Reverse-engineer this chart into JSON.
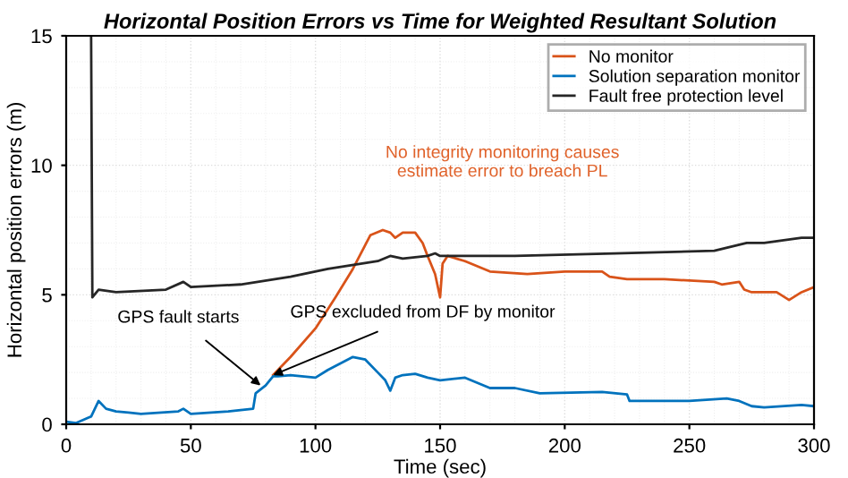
{
  "chart_data": {
    "type": "line",
    "title": "Horizontal Position Errors vs Time for Weighted Resultant Solution",
    "xlabel": "Time (sec)",
    "ylabel": "Horizontal position errors (m)",
    "xlim": [
      0,
      300
    ],
    "ylim": [
      0,
      15
    ],
    "xticks": [
      0,
      50,
      100,
      150,
      200,
      250,
      300
    ],
    "yticks": [
      0,
      5,
      10,
      15
    ],
    "grid": true,
    "legend": "top right",
    "line_style": "solid",
    "marker": "none",
    "series": [
      {
        "name": "No monitor",
        "color": "#d95319",
        "x": [
          83,
          90,
          100,
          108,
          115,
          122,
          127,
          130,
          132,
          135,
          140,
          143,
          145,
          148,
          150,
          151,
          153,
          160,
          170,
          185,
          200,
          215,
          218,
          225,
          240,
          260,
          263,
          270,
          272,
          275,
          285,
          290,
          295,
          300
        ],
        "values": [
          1.9,
          2.6,
          3.7,
          4.9,
          6.0,
          7.3,
          7.5,
          7.4,
          7.2,
          7.4,
          7.4,
          7.0,
          6.5,
          5.8,
          4.9,
          6.2,
          6.5,
          6.3,
          5.9,
          5.8,
          5.9,
          5.9,
          5.7,
          5.6,
          5.6,
          5.5,
          5.4,
          5.5,
          5.2,
          5.1,
          5.1,
          4.8,
          5.1,
          5.3
        ]
      },
      {
        "name": "Solution separation monitor",
        "color": "#0072bd",
        "x": [
          0,
          4,
          10,
          13,
          16,
          20,
          25,
          30,
          45,
          47,
          50,
          65,
          75,
          76,
          80,
          83,
          85,
          90,
          100,
          105,
          115,
          120,
          125,
          128,
          130,
          132,
          135,
          140,
          145,
          150,
          160,
          170,
          180,
          190,
          215,
          225,
          226,
          250,
          265,
          270,
          275,
          280,
          295,
          300
        ],
        "values": [
          0.1,
          0.05,
          0.3,
          0.9,
          0.6,
          0.5,
          0.45,
          0.4,
          0.5,
          0.6,
          0.4,
          0.5,
          0.6,
          1.2,
          1.5,
          1.85,
          1.85,
          1.9,
          1.8,
          2.1,
          2.6,
          2.5,
          2.0,
          1.7,
          1.3,
          1.8,
          1.9,
          1.95,
          1.8,
          1.7,
          1.8,
          1.4,
          1.4,
          1.2,
          1.25,
          1.15,
          0.9,
          0.9,
          1.0,
          0.9,
          0.7,
          0.65,
          0.75,
          0.7
        ]
      },
      {
        "name": "Fault free protection level",
        "color": "#262626",
        "x": [
          10,
          10.5,
          13,
          20,
          40,
          47,
          50,
          70,
          90,
          105,
          125,
          130,
          135,
          145,
          148,
          150,
          180,
          220,
          260,
          273,
          280,
          295,
          300
        ],
        "values": [
          15,
          4.9,
          5.2,
          5.1,
          5.2,
          5.5,
          5.3,
          5.4,
          5.7,
          6.0,
          6.3,
          6.5,
          6.4,
          6.5,
          6.6,
          6.5,
          6.5,
          6.6,
          6.7,
          7.0,
          7.0,
          7.2,
          7.2
        ]
      }
    ],
    "annotations": [
      "No integrity monitoring causes\nestimate error to breach PL",
      {
        "text": "GPS fault starts",
        "x": 78,
        "y": 1.5
      },
      {
        "text": "GPS excluded from DF by monitor",
        "x": 83,
        "y": 1.9
      }
    ]
  }
}
